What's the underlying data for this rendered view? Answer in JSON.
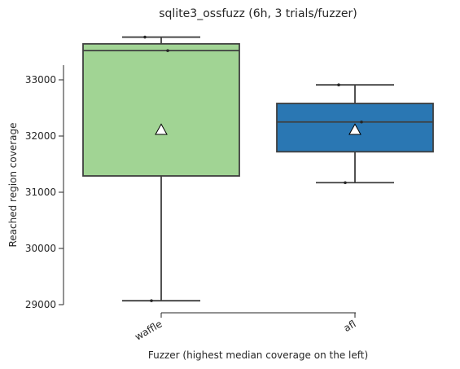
{
  "chart_data": {
    "type": "box",
    "title": "sqlite3_ossfuzz (6h, 3 trials/fuzzer)",
    "xlabel": "Fuzzer (highest median coverage on the left)",
    "ylabel": "Reached region coverage",
    "ylim": [
      29000,
      33800
    ],
    "yticks": [
      "29000",
      "30000",
      "31000",
      "32000",
      "33000"
    ],
    "categories": [
      "waffle",
      "afl"
    ],
    "boxes": [
      {
        "name": "waffle",
        "color": "#a1d494",
        "whisker_low": 29070,
        "q1": 31290,
        "median": 33520,
        "q3": 33640,
        "whisker_high": 33760,
        "mean": 32110,
        "points": [
          29070,
          33520,
          33760
        ]
      },
      {
        "name": "afl",
        "color": "#2a77b3",
        "whisker_low": 31170,
        "q1": 31720,
        "median": 32250,
        "q3": 32580,
        "whisker_high": 32910,
        "mean": 32110,
        "points": [
          31170,
          32250,
          32910
        ]
      }
    ],
    "grid": false,
    "legend": "none"
  }
}
